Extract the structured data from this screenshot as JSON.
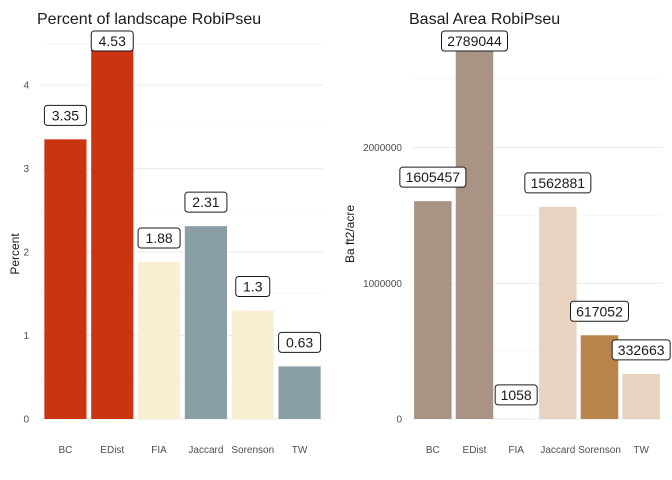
{
  "chart_data": [
    {
      "type": "bar",
      "title": "Percent of landscape  RobiPseu",
      "xlabel": "",
      "ylabel": "Percent",
      "categories": [
        "BC",
        "EDist",
        "FIA",
        "Jaccard",
        "Sorenson",
        "TW"
      ],
      "values": [
        3.35,
        4.53,
        1.88,
        2.31,
        1.3,
        0.63
      ],
      "labels": [
        "3.35",
        "4.53",
        "1.88",
        "2.31",
        "1.3",
        "0.63"
      ],
      "colors": [
        "#cc3311",
        "#cc3311",
        "#f9efd2",
        "#8a9ea6",
        "#f9efd2",
        "#8a9ea6"
      ],
      "ylim": [
        0,
        4.6
      ],
      "yticks": [
        0,
        1,
        2,
        3,
        4
      ],
      "ytick_labels": [
        "0",
        "1",
        "2",
        "3",
        "4"
      ],
      "grid": true
    },
    {
      "type": "bar",
      "title": "Basal Area  RobiPseu",
      "xlabel": "",
      "ylabel": "Ba ft2/acre",
      "categories": [
        "BC",
        "EDist",
        "FIA",
        "Jaccard",
        "Sorenson",
        "TW"
      ],
      "values": [
        1605457,
        2789044,
        1058,
        1562881,
        617052,
        332663
      ],
      "labels": [
        "1605457",
        "2789044",
        "1058",
        "1562881",
        "617052",
        "332663"
      ],
      "colors": [
        "#a99385",
        "#a99385",
        "#f0e0d0",
        "#e8d2c0",
        "#b8844a",
        "#e8d2c0"
      ],
      "ylim": [
        0,
        2830000
      ],
      "yticks": [
        0,
        1000000,
        2000000
      ],
      "ytick_labels": [
        "0",
        "1000000",
        "2000000"
      ],
      "grid": true
    }
  ]
}
